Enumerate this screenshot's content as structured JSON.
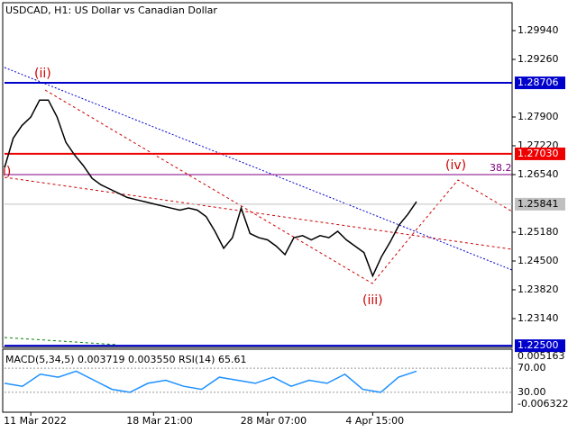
{
  "header": "USDCAD, H1:  US Dollar vs Canadian Dollar",
  "chart_data": {
    "type": "line",
    "color": "#000000",
    "categories": [
      null,
      null,
      null,
      "11 Mar 2022",
      null,
      null,
      null,
      null,
      null,
      null,
      null,
      null,
      null,
      null,
      null,
      null,
      null,
      "18 Mar 21:00",
      null,
      null,
      null,
      null,
      null,
      null,
      null,
      null,
      null,
      null,
      null,
      null,
      "28 Mar 07:00",
      null,
      null,
      null,
      null,
      null,
      null,
      null,
      null,
      null,
      null,
      null,
      "4 Apr 15:00",
      null,
      null,
      null,
      null,
      null
    ],
    "values": [
      1.267,
      1.274,
      1.277,
      1.279,
      1.283,
      1.283,
      1.279,
      1.273,
      1.27,
      1.2675,
      1.2645,
      1.263,
      1.262,
      1.261,
      1.26,
      1.2595,
      1.259,
      1.2585,
      1.258,
      1.2575,
      1.257,
      1.2575,
      1.257,
      1.2555,
      1.252,
      1.248,
      1.2505,
      1.2575,
      1.2515,
      1.2505,
      1.25,
      1.2485,
      1.2465,
      1.2505,
      1.251,
      1.25,
      1.251,
      1.2505,
      1.252,
      1.25,
      1.2485,
      1.247,
      1.2415,
      1.246,
      1.2495,
      1.2535,
      1.256,
      1.259
    ],
    "ylim": [
      1.22481,
      1.30556
    ],
    "yticks": [
      {
        "value": 1.2994,
        "label": "1.29940"
      },
      {
        "value": 1.2926,
        "label": "1.29260"
      },
      {
        "value": 1.279,
        "label": "1.27900"
      },
      {
        "value": 1.2722,
        "label": "1.27220"
      },
      {
        "value": 1.2654,
        "label": "1.26540"
      },
      {
        "value": 1.2518,
        "label": "1.25180"
      },
      {
        "value": 1.245,
        "label": "1.24500"
      },
      {
        "value": 1.2382,
        "label": "1.23820"
      },
      {
        "value": 1.2314,
        "label": "1.23140"
      }
    ],
    "levels": [
      {
        "value": 1.28706,
        "color": "#0000cc"
      },
      {
        "value": 1.2703,
        "label": "1.27030",
        "color": "#ee0000"
      },
      {
        "value": 1.25841,
        "color": "#c0c0c0"
      },
      {
        "value": 1.225,
        "label": "1.22500",
        "color": "#0000cc"
      }
    ],
    "annotations": [
      "(ii)",
      "(iii)",
      "(iv)",
      "i)",
      "38.2"
    ],
    "indicator": {
      "title": "MACD(5,34,5) 0.003719 0.003550 RSI(14) 65.61",
      "ylim": [
        0,
        100
      ],
      "yticks": [
        {
          "value": 70,
          "label": "70.00"
        },
        {
          "value": 30,
          "label": "30.00"
        }
      ],
      "scale_labels": [
        0.005163,
        -0.006322
      ],
      "color": "#1e90ff",
      "values": [
        45,
        40,
        60,
        55,
        65,
        50,
        35,
        30,
        45,
        50,
        40,
        35,
        55,
        50,
        45,
        55,
        40,
        50,
        45,
        60,
        35,
        30,
        55,
        65
      ]
    }
  }
}
